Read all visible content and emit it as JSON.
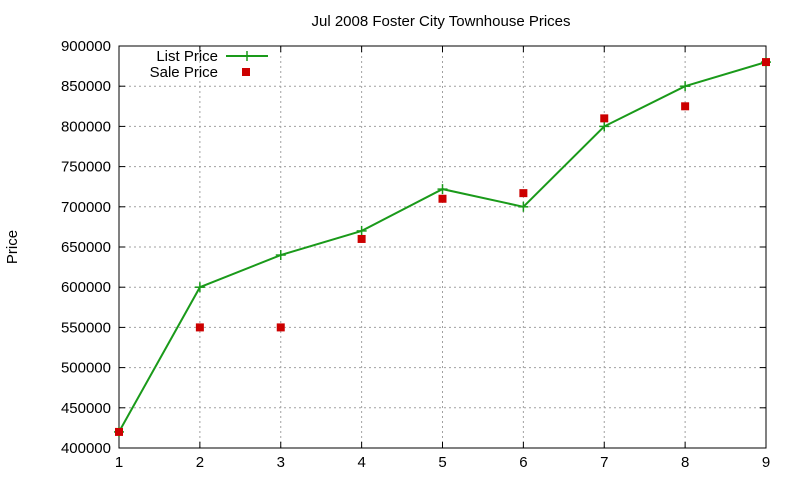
{
  "chart_data": {
    "type": "line",
    "title": "Jul 2008 Foster City Townhouse Prices",
    "xlabel": "",
    "ylabel": "Price",
    "xlim": [
      1,
      9
    ],
    "ylim": [
      400000,
      900000
    ],
    "xticks": [
      "1",
      "2",
      "3",
      "4",
      "5",
      "6",
      "7",
      "8",
      "9"
    ],
    "yticks": [
      "400000",
      "450000",
      "500000",
      "550000",
      "600000",
      "650000",
      "700000",
      "750000",
      "800000",
      "850000",
      "900000"
    ],
    "grid": true,
    "legend_position": "top-left",
    "x": [
      1,
      2,
      3,
      4,
      5,
      6,
      7,
      8,
      9
    ],
    "series": [
      {
        "name": "List Price",
        "style": "line-with-plus-points",
        "color": "#1a9a1a",
        "values": [
          420000,
          600000,
          640000,
          670000,
          722000,
          700000,
          800000,
          850000,
          880000
        ]
      },
      {
        "name": "Sale Price",
        "style": "square-points",
        "color": "#cc0000",
        "values": [
          420000,
          550000,
          550000,
          660000,
          710000,
          717000,
          810000,
          825000,
          880000
        ]
      }
    ]
  }
}
